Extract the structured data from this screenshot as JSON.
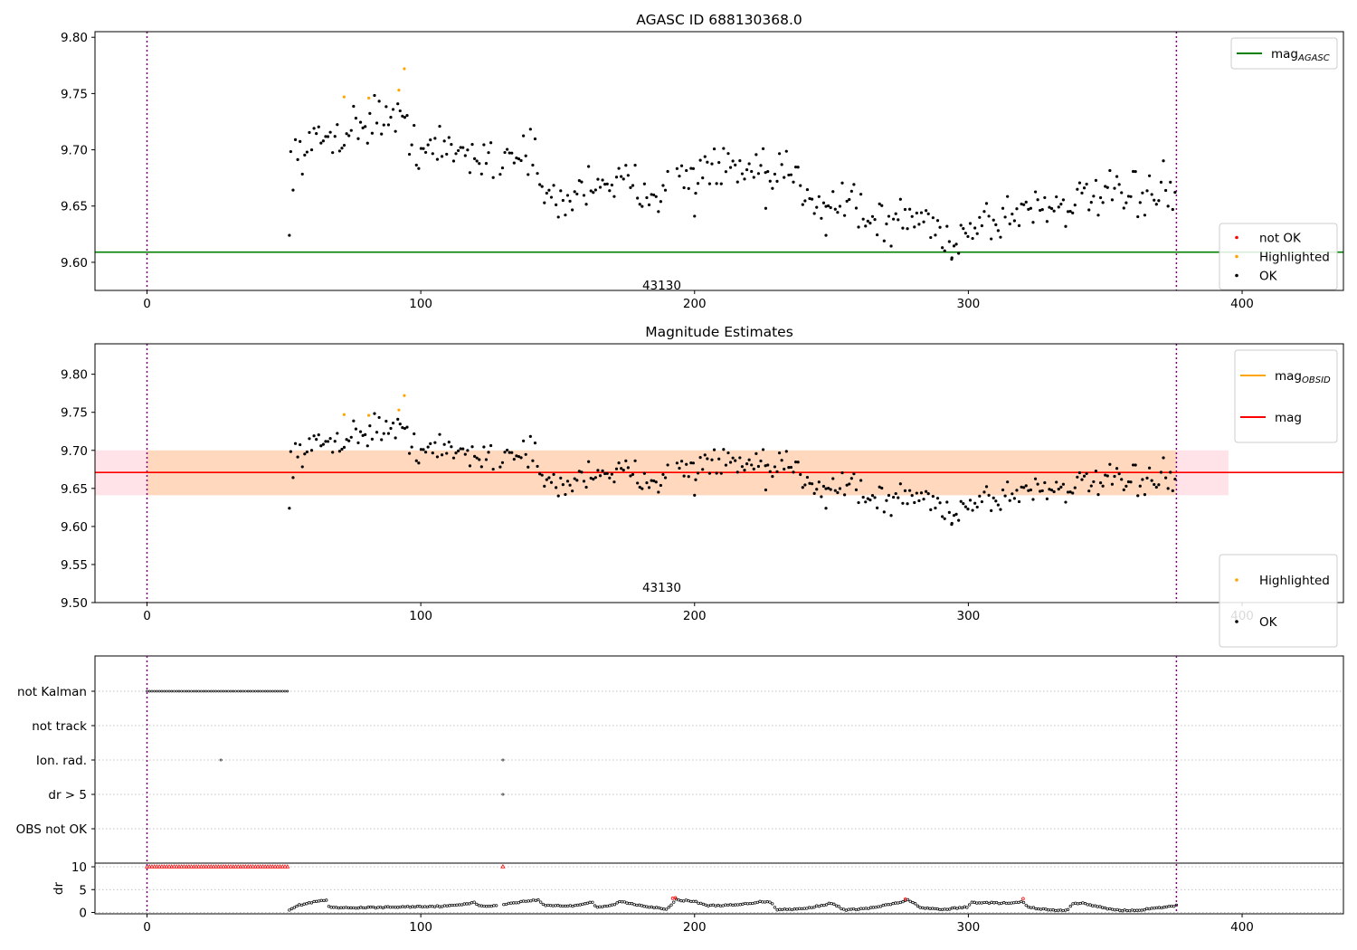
{
  "figure": {
    "background": "#ffffff"
  },
  "colors": {
    "ok": "#000000",
    "highlighted": "#ffa500",
    "not_ok": "#ff0000",
    "mag_agasc_line": "#008000",
    "mag_obsid_line": "#ffa500",
    "mag_line": "#ff0000",
    "vline": "#800080",
    "band_outer": "#ffc0cb",
    "band_inner": "#ffa500"
  },
  "chart_data": [
    {
      "type": "scatter",
      "title": "AGASC ID 688130368.0",
      "xlim": [
        -19,
        437
      ],
      "ylim": [
        9.575,
        9.805
      ],
      "xticks": [
        0,
        100,
        200,
        300,
        400
      ],
      "yticks": [
        9.6,
        9.65,
        9.7,
        9.75,
        9.8
      ],
      "ytick_labels": [
        "9.60",
        "9.65",
        "9.70",
        "9.75",
        "9.80"
      ],
      "vlines": [
        0,
        376
      ],
      "hlines": [
        {
          "name": "mag_AGASC",
          "y": 9.609,
          "color": "#008000",
          "x_range": [
            -19,
            437
          ]
        }
      ],
      "annotation": {
        "text": "43130",
        "x": 188,
        "y": 9.58
      },
      "legends": [
        {
          "position": "top-right",
          "entries": [
            {
              "label": "mag",
              "sub": "AGASC",
              "marker": "line",
              "color": "#008000"
            }
          ]
        },
        {
          "position": "bottom-right",
          "entries": [
            {
              "label": "not OK",
              "marker": "dot",
              "color": "#ff0000"
            },
            {
              "label": "Highlighted",
              "marker": "dot",
              "color": "#ffa500"
            },
            {
              "label": "OK",
              "marker": "dot",
              "color": "#000000"
            }
          ]
        }
      ],
      "series": [
        {
          "name": "OK",
          "source": "mag_series",
          "values": []
        }
      ],
      "highlighted": [
        [
          72,
          9.747
        ],
        [
          81,
          9.746
        ],
        [
          92,
          9.753
        ],
        [
          94,
          9.772
        ]
      ]
    },
    {
      "type": "scatter",
      "title": "Magnitude Estimates",
      "xlim": [
        -19,
        437
      ],
      "ylim": [
        9.5,
        9.84
      ],
      "xticks": [
        0,
        100,
        200,
        300,
        400
      ],
      "yticks": [
        9.5,
        9.55,
        9.6,
        9.65,
        9.7,
        9.75,
        9.8
      ],
      "ytick_labels": [
        "9.50",
        "9.55",
        "9.60",
        "9.65",
        "9.70",
        "9.75",
        "9.80"
      ],
      "vlines": [
        0,
        376
      ],
      "hlines": [
        {
          "name": "mag_OBSID",
          "y": 9.671,
          "color": "#ffa500",
          "x_range": [
            0,
            376
          ]
        },
        {
          "name": "mag",
          "y": 9.671,
          "color": "#ff0000",
          "x_range": [
            -19,
            437
          ]
        }
      ],
      "bands": [
        {
          "y0": 9.641,
          "y1": 9.7,
          "x_range": [
            -19,
            395
          ],
          "color": "#ffc0cb",
          "opacity": 0.45
        },
        {
          "y0": 9.641,
          "y1": 9.7,
          "x_range": [
            0,
            376
          ],
          "color": "#ffa500",
          "opacity": 0.18
        }
      ],
      "annotation": {
        "text": "43130",
        "x": 188,
        "y": 9.52
      },
      "legends": [
        {
          "position": "top-right",
          "entries": [
            {
              "label": "mag",
              "sub": "OBSID",
              "marker": "line",
              "color": "#ffa500"
            },
            {
              "label": "mag",
              "marker": "line",
              "color": "#ff0000"
            }
          ]
        },
        {
          "position": "bottom-right",
          "entries": [
            {
              "label": "Highlighted",
              "marker": "dot",
              "color": "#ffa500"
            },
            {
              "label": "OK",
              "marker": "dot",
              "color": "#000000"
            }
          ]
        }
      ],
      "series": [
        {
          "name": "OK",
          "source": "mag_series",
          "values": []
        }
      ],
      "highlighted": [
        [
          72,
          9.747
        ],
        [
          81,
          9.746
        ],
        [
          92,
          9.753
        ],
        [
          94,
          9.772
        ]
      ]
    },
    {
      "type": "scatter",
      "title": "",
      "xlim": [
        -19,
        437
      ],
      "xticks": [
        0,
        100,
        200,
        300,
        400
      ],
      "flags": [
        "not Kalman",
        "not track",
        "Ion. rad.",
        "dr > 5",
        "OBS not OK"
      ],
      "vlines": [
        0,
        376
      ],
      "flag_points": {
        "not Kalman": {
          "ranges": [
            [
              0,
              51.5
            ]
          ]
        },
        "not track": {
          "ranges": []
        },
        "Ion. rad.": {
          "points": [
            27,
            130
          ]
        },
        "dr > 5": {
          "points": [
            130
          ]
        },
        "OBS not OK": {
          "ranges": []
        }
      },
      "dr": {
        "ylabel": "dr",
        "ylim": [
          -0.3,
          10.8
        ],
        "yticks": [
          0,
          5,
          10
        ],
        "ytick_labels": [
          "0",
          "5",
          "10"
        ],
        "capped_value": 10,
        "capped_ranges": [
          [
            0,
            51.5
          ]
        ],
        "capped_points": [
          130
        ],
        "red_points": [
          [
            192,
            3.1
          ],
          [
            193,
            3.2
          ],
          [
            277,
            2.9
          ],
          [
            320,
            3.0
          ]
        ],
        "values": []
      }
    }
  ]
}
